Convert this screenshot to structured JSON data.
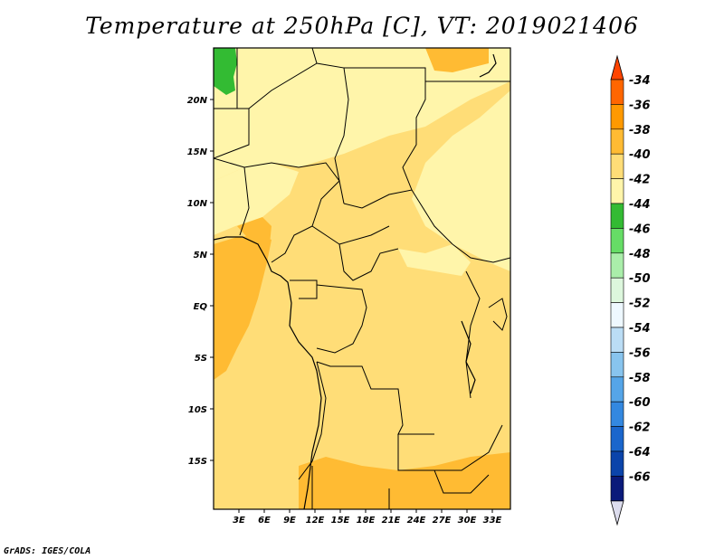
{
  "title": "Temperature at 250hPa [C], VT: 2019021406",
  "footer": "GrADS: IGES/COLA",
  "map": {
    "x_ticks": [
      "3E",
      "6E",
      "9E",
      "12E",
      "15E",
      "18E",
      "21E",
      "24E",
      "27E",
      "30E",
      "33E"
    ],
    "y_ticks": [
      "20N",
      "15N",
      "10N",
      "5N",
      "EQ",
      "5S",
      "10S",
      "15S"
    ]
  },
  "legend": {
    "labels": [
      "-34",
      "-36",
      "-38",
      "-40",
      "-42",
      "-44",
      "-46",
      "-48",
      "-50",
      "-52",
      "-54",
      "-56",
      "-58",
      "-60",
      "-62",
      "-64",
      "-66"
    ],
    "colors": [
      "#ff4400",
      "#ff6600",
      "#ff9900",
      "#ffbb33",
      "#ffdd77",
      "#fff5aa",
      "#33bb33",
      "#66dd66",
      "#aaeeaa",
      "#ddf7dd",
      "#eef8ff",
      "#bbddf5",
      "#88c4ee",
      "#55a5e8",
      "#3388e0",
      "#1a66cc",
      "#0b44aa",
      "#0a1a7a",
      "#ddddee"
    ]
  }
}
